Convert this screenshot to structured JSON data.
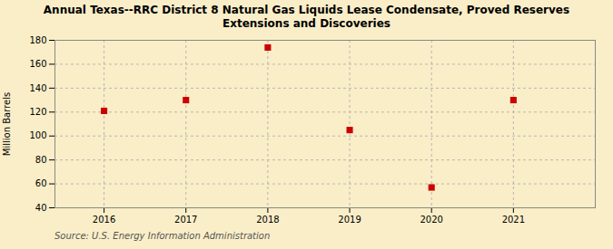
{
  "chart_data": {
    "type": "scatter",
    "title": "Annual Texas--RRC District 8 Natural Gas Liquids Lease Condensate, Proved Reserves\nExtensions and Discoveries",
    "ylabel": "Million Barrels",
    "source": "Source: U.S. Energy Information Administration",
    "x": [
      2016,
      2017,
      2018,
      2019,
      2020,
      2021
    ],
    "values": [
      121,
      130,
      174,
      105,
      57,
      130
    ],
    "color": "#cc0000",
    "marker": "square",
    "xlim": [
      2015.4,
      2022.0
    ],
    "xticks": [
      2016,
      2017,
      2018,
      2019,
      2020,
      2021
    ],
    "ylim": [
      40,
      180
    ],
    "yticks": [
      40,
      60,
      80,
      100,
      120,
      140,
      160,
      180
    ],
    "grid": true
  }
}
